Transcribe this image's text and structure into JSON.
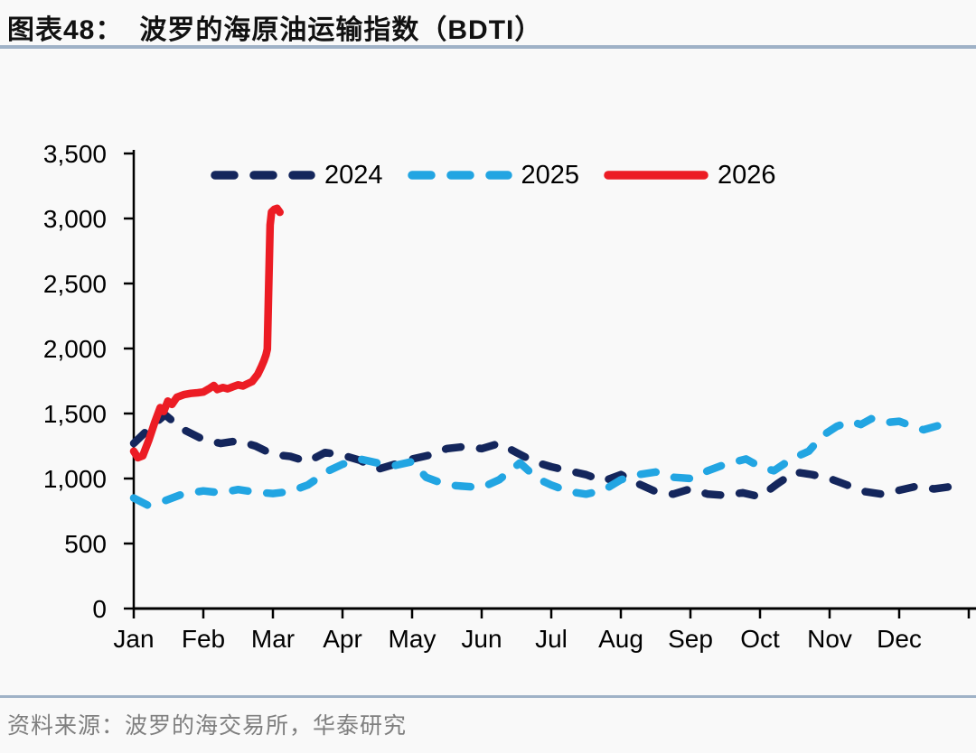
{
  "page": {
    "background_color": "#f9f9f9"
  },
  "header": {
    "figure_label": "图表48：",
    "title": "波罗的海原油运输指数（BDTI）"
  },
  "footer": {
    "source": "资料来源：波罗的海交易所，华泰研究"
  },
  "colors": {
    "accent_rule": "#9fb2c7",
    "axis": "#000000",
    "source_text": "#7f7f7f",
    "series_2024": "#14265c",
    "series_2025": "#22a5e2",
    "series_2026": "#ec1c24"
  },
  "chart_data": {
    "type": "line",
    "title": "波罗的海原油运输指数（BDTI）",
    "xlabel": "",
    "ylabel": "",
    "ylim": [
      0,
      3500
    ],
    "y_ticks": [
      0,
      500,
      1000,
      1500,
      2000,
      2500,
      3000,
      3500
    ],
    "y_tick_labels": [
      "0",
      "500",
      "1,000",
      "1,500",
      "2,000",
      "2,500",
      "3,000",
      "3,500"
    ],
    "x_tick_labels": [
      "Jan",
      "Feb",
      "Mar",
      "Apr",
      "May",
      "Jun",
      "Jul",
      "Aug",
      "Sep",
      "Oct",
      "Nov",
      "Dec"
    ],
    "x_unit": "months since Jan 1 (fractional month position)",
    "x_range_months": [
      0,
      12.1
    ],
    "grid": false,
    "legend_position": "top-center",
    "series": [
      {
        "name": "2024",
        "color": "#14265c",
        "style": "dashed",
        "points": [
          [
            0.0,
            1270
          ],
          [
            0.25,
            1400
          ],
          [
            0.45,
            1490
          ],
          [
            0.7,
            1380
          ],
          [
            1.0,
            1300
          ],
          [
            1.25,
            1270
          ],
          [
            1.5,
            1290
          ],
          [
            1.75,
            1250
          ],
          [
            2.0,
            1185
          ],
          [
            2.25,
            1170
          ],
          [
            2.5,
            1130
          ],
          [
            2.75,
            1200
          ],
          [
            3.0,
            1180
          ],
          [
            3.25,
            1140
          ],
          [
            3.5,
            1070
          ],
          [
            3.75,
            1110
          ],
          [
            4.0,
            1150
          ],
          [
            4.25,
            1180
          ],
          [
            4.5,
            1230
          ],
          [
            4.75,
            1245
          ],
          [
            5.0,
            1230
          ],
          [
            5.25,
            1270
          ],
          [
            5.5,
            1200
          ],
          [
            5.75,
            1130
          ],
          [
            6.0,
            1090
          ],
          [
            6.25,
            1060
          ],
          [
            6.5,
            1030
          ],
          [
            6.75,
            980
          ],
          [
            7.0,
            1030
          ],
          [
            7.25,
            960
          ],
          [
            7.5,
            900
          ],
          [
            7.75,
            880
          ],
          [
            8.0,
            920
          ],
          [
            8.25,
            880
          ],
          [
            8.5,
            870
          ],
          [
            8.75,
            890
          ],
          [
            9.0,
            860
          ],
          [
            9.25,
            960
          ],
          [
            9.5,
            1050
          ],
          [
            9.75,
            1030
          ],
          [
            10.0,
            1000
          ],
          [
            10.25,
            950
          ],
          [
            10.5,
            900
          ],
          [
            10.75,
            880
          ],
          [
            11.0,
            910
          ],
          [
            11.25,
            940
          ],
          [
            11.5,
            920
          ],
          [
            11.7,
            935
          ]
        ]
      },
      {
        "name": "2025",
        "color": "#22a5e2",
        "style": "dashed",
        "points": [
          [
            0.0,
            850
          ],
          [
            0.2,
            795
          ],
          [
            0.45,
            830
          ],
          [
            0.7,
            880
          ],
          [
            1.0,
            905
          ],
          [
            1.25,
            890
          ],
          [
            1.5,
            915
          ],
          [
            1.75,
            895
          ],
          [
            2.0,
            885
          ],
          [
            2.25,
            900
          ],
          [
            2.5,
            950
          ],
          [
            2.8,
            1060
          ],
          [
            3.0,
            1110
          ],
          [
            3.25,
            1150
          ],
          [
            3.5,
            1120
          ],
          [
            3.75,
            1100
          ],
          [
            4.0,
            1130
          ],
          [
            4.2,
            1010
          ],
          [
            4.5,
            950
          ],
          [
            4.75,
            940
          ],
          [
            5.0,
            930
          ],
          [
            5.25,
            990
          ],
          [
            5.55,
            1120
          ],
          [
            5.8,
            1000
          ],
          [
            6.0,
            950
          ],
          [
            6.25,
            900
          ],
          [
            6.5,
            880
          ],
          [
            6.75,
            910
          ],
          [
            7.0,
            990
          ],
          [
            7.25,
            1030
          ],
          [
            7.5,
            1050
          ],
          [
            7.75,
            1010
          ],
          [
            8.0,
            1000
          ],
          [
            8.25,
            1060
          ],
          [
            8.5,
            1110
          ],
          [
            8.8,
            1150
          ],
          [
            9.0,
            1090
          ],
          [
            9.2,
            1060
          ],
          [
            9.45,
            1150
          ],
          [
            9.7,
            1210
          ],
          [
            9.9,
            1330
          ],
          [
            10.1,
            1400
          ],
          [
            10.3,
            1440
          ],
          [
            10.45,
            1415
          ],
          [
            10.6,
            1460
          ],
          [
            10.8,
            1430
          ],
          [
            11.0,
            1440
          ],
          [
            11.2,
            1400
          ],
          [
            11.35,
            1375
          ],
          [
            11.55,
            1405
          ]
        ]
      },
      {
        "name": "2026",
        "color": "#ec1c24",
        "style": "solid",
        "points": [
          [
            0.0,
            1210
          ],
          [
            0.06,
            1160
          ],
          [
            0.13,
            1175
          ],
          [
            0.22,
            1300
          ],
          [
            0.3,
            1430
          ],
          [
            0.38,
            1545
          ],
          [
            0.43,
            1515
          ],
          [
            0.49,
            1595
          ],
          [
            0.55,
            1570
          ],
          [
            0.62,
            1625
          ],
          [
            0.72,
            1645
          ],
          [
            0.82,
            1655
          ],
          [
            0.92,
            1660
          ],
          [
            1.0,
            1665
          ],
          [
            1.08,
            1690
          ],
          [
            1.15,
            1715
          ],
          [
            1.2,
            1685
          ],
          [
            1.28,
            1700
          ],
          [
            1.35,
            1690
          ],
          [
            1.42,
            1705
          ],
          [
            1.5,
            1720
          ],
          [
            1.57,
            1712
          ],
          [
            1.63,
            1728
          ],
          [
            1.7,
            1745
          ],
          [
            1.78,
            1800
          ],
          [
            1.83,
            1855
          ],
          [
            1.87,
            1905
          ],
          [
            1.9,
            1950
          ],
          [
            1.92,
            1995
          ],
          [
            1.94,
            2500
          ],
          [
            1.96,
            2950
          ],
          [
            1.98,
            3050
          ],
          [
            2.02,
            3070
          ],
          [
            2.06,
            3078
          ],
          [
            2.1,
            3048
          ]
        ]
      }
    ]
  }
}
